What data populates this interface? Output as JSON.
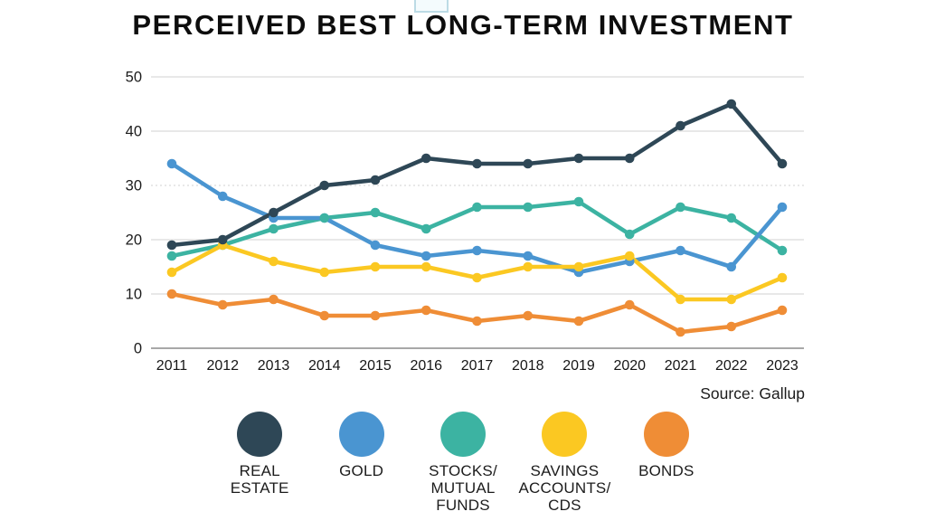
{
  "title": "PERCEIVED BEST LONG-TERM INVESTMENT",
  "source": "Source: Gallup",
  "chart_data": {
    "type": "line",
    "title": "PERCEIVED BEST LONG-TERM INVESTMENT",
    "xlabel": "",
    "ylabel": "",
    "ylim": [
      0,
      50
    ],
    "yticks": [
      0,
      10,
      20,
      30,
      40,
      50
    ],
    "grid": true,
    "grid_color": "#dbdbdb",
    "zero_line_color": "#a8a8a8",
    "legend_position": "bottom",
    "categories": [
      "2011",
      "2012",
      "2013",
      "2014",
      "2015",
      "2016",
      "2017",
      "2018",
      "2019",
      "2020",
      "2021",
      "2022",
      "2023"
    ],
    "series": [
      {
        "name": "REAL\nESTATE",
        "color": "#2e4756",
        "values": [
          19,
          20,
          25,
          30,
          31,
          35,
          34,
          34,
          35,
          35,
          41,
          45,
          34
        ]
      },
      {
        "name": "GOLD",
        "color": "#4a95d1",
        "values": [
          34,
          28,
          24,
          24,
          19,
          17,
          18,
          17,
          14,
          16,
          18,
          15,
          26
        ]
      },
      {
        "name": "STOCKS/\nMUTUAL\nFUNDS",
        "color": "#3cb3a2",
        "values": [
          17,
          19,
          22,
          24,
          25,
          22,
          26,
          26,
          27,
          21,
          26,
          24,
          18
        ]
      },
      {
        "name": "SAVINGS\nACCOUNTS/\nCDS",
        "color": "#fbc822",
        "values": [
          14,
          19,
          16,
          14,
          15,
          15,
          13,
          15,
          15,
          17,
          9,
          9,
          13
        ]
      },
      {
        "name": "BONDS",
        "color": "#ef8d36",
        "values": [
          10,
          8,
          9,
          6,
          6,
          7,
          5,
          6,
          5,
          8,
          3,
          4,
          7
        ]
      }
    ]
  }
}
